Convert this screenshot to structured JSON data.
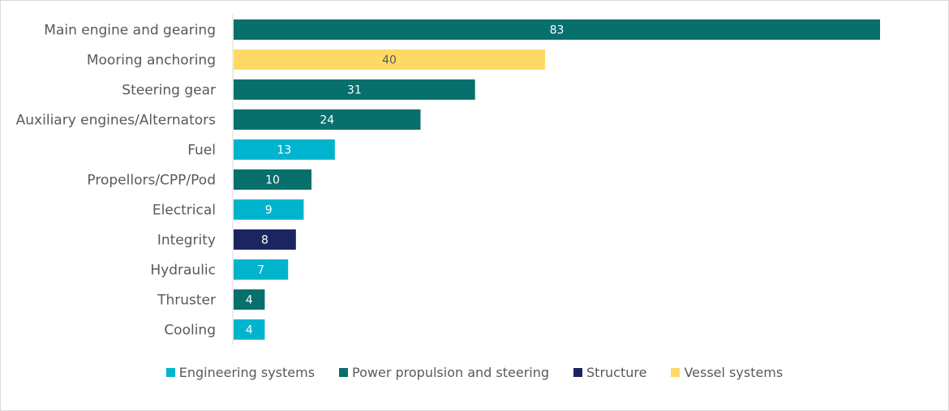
{
  "chart_data": {
    "type": "bar",
    "orientation": "horizontal",
    "title": "",
    "xlabel": "",
    "ylabel": "",
    "xlim": [
      0,
      83
    ],
    "grid": false,
    "legend_position": "bottom",
    "categories": [
      "Main engine and gearing",
      "Mooring anchoring",
      "Steering gear",
      "Auxiliary engines/Alternators",
      "Fuel",
      "Propellors/CPP/Pod",
      "Electrical",
      "Integrity",
      "Hydraulic",
      "Thruster",
      "Cooling"
    ],
    "values": [
      83,
      40,
      31,
      24,
      13,
      10,
      9,
      8,
      7,
      4,
      4
    ],
    "groups": [
      "Power propulsion and steering",
      "Vessel systems",
      "Power propulsion and steering",
      "Power propulsion and steering",
      "Engineering systems",
      "Power propulsion and steering",
      "Engineering systems",
      "Structure",
      "Engineering systems",
      "Power propulsion and steering",
      "Engineering systems"
    ],
    "legend": [
      {
        "name": "Engineering systems",
        "color": "#00B4CE",
        "label_color": "#ffffff"
      },
      {
        "name": "Power propulsion and steering",
        "color": "#076F6C",
        "label_color": "#ffffff"
      },
      {
        "name": "Structure",
        "color": "#1A2562",
        "label_color": "#ffffff"
      },
      {
        "name": "Vessel systems",
        "color": "#FFD966",
        "label_color": "#595959"
      }
    ]
  }
}
